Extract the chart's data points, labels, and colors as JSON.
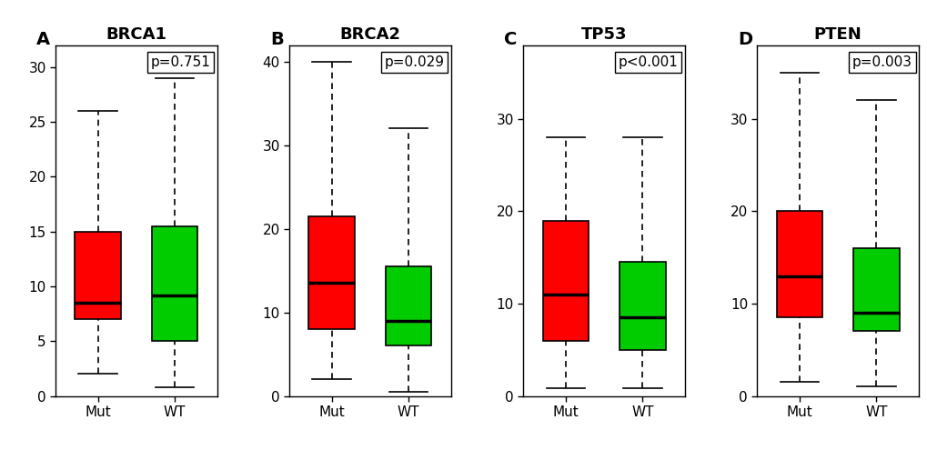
{
  "panels": [
    {
      "label": "A",
      "title": "BRCA1",
      "pvalue": "p=0.751",
      "ylim": [
        0,
        32
      ],
      "yticks": [
        0,
        5,
        10,
        15,
        20,
        25,
        30
      ],
      "mut": {
        "whisker_low": 2.0,
        "q1": 7.0,
        "median": 8.5,
        "q3": 15.0,
        "whisker_high": 26.0
      },
      "wt": {
        "whisker_low": 0.8,
        "q1": 5.0,
        "median": 9.2,
        "q3": 15.5,
        "whisker_high": 29.0
      }
    },
    {
      "label": "B",
      "title": "BRCA2",
      "pvalue": "p=0.029",
      "ylim": [
        0,
        42
      ],
      "yticks": [
        0,
        10,
        20,
        30,
        40
      ],
      "mut": {
        "whisker_low": 2.0,
        "q1": 8.0,
        "median": 13.5,
        "q3": 21.5,
        "whisker_high": 40.0
      },
      "wt": {
        "whisker_low": 0.5,
        "q1": 6.0,
        "median": 9.0,
        "q3": 15.5,
        "whisker_high": 32.0
      }
    },
    {
      "label": "C",
      "title": "TP53",
      "pvalue": "p<0.001",
      "ylim": [
        0,
        38
      ],
      "yticks": [
        0,
        10,
        20,
        30
      ],
      "mut": {
        "whisker_low": 0.8,
        "q1": 6.0,
        "median": 11.0,
        "q3": 19.0,
        "whisker_high": 28.0
      },
      "wt": {
        "whisker_low": 0.8,
        "q1": 5.0,
        "median": 8.5,
        "q3": 14.5,
        "whisker_high": 28.0
      }
    },
    {
      "label": "D",
      "title": "PTEN",
      "pvalue": "p=0.003",
      "ylim": [
        0,
        38
      ],
      "yticks": [
        0,
        10,
        20,
        30
      ],
      "mut": {
        "whisker_low": 1.5,
        "q1": 8.5,
        "median": 13.0,
        "q3": 20.0,
        "whisker_high": 35.0
      },
      "wt": {
        "whisker_low": 1.0,
        "q1": 7.0,
        "median": 9.0,
        "q3": 16.0,
        "whisker_high": 32.0
      }
    }
  ],
  "mut_color": "#FF0000",
  "wt_color": "#00CC00",
  "box_width": 0.6,
  "xtick_labels": [
    "Mut",
    "WT"
  ],
  "background_color": "#FFFFFF",
  "title_fontsize": 13,
  "label_fontsize": 14,
  "tick_fontsize": 11,
  "pvalue_fontsize": 11
}
